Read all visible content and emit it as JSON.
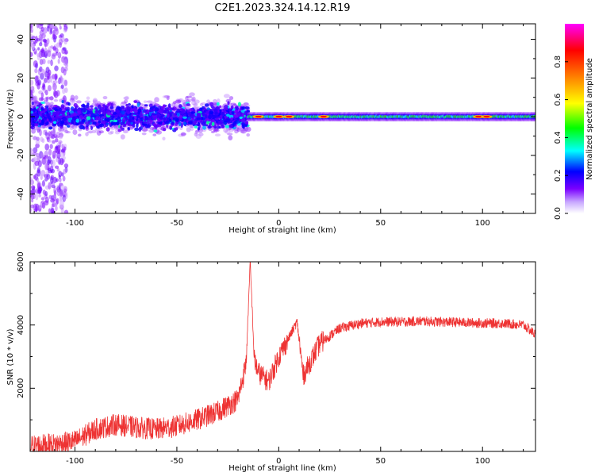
{
  "figure_title": "C2E1.2023.324.14.12.R19",
  "chart_data": [
    {
      "type": "heatmap",
      "xlabel": "Height of straight line (km)",
      "ylabel": "Frequency (Hz)",
      "xlim": [
        -122,
        126
      ],
      "ylim": [
        -50,
        48
      ],
      "x_ticks": [
        -100,
        -50,
        0,
        50,
        100
      ],
      "y_ticks": [
        -40,
        -20,
        0,
        20,
        40
      ],
      "colorbar": {
        "label": "Normalized spectral amplitude",
        "range": [
          0,
          1
        ],
        "ticks": [
          0.0,
          0.2,
          0.4,
          0.6,
          0.8
        ],
        "tick_labels": [
          "0.0",
          "0.2",
          "0.4",
          "0.6",
          "0.8"
        ],
        "colors": [
          "#ffffff",
          "#7a00ff",
          "#0000ff",
          "#00ffff",
          "#00ff00",
          "#ffff00",
          "#ff8000",
          "#ff0000",
          "#ff00ff"
        ]
      },
      "regions": [
        {
          "x_range": [
            -122,
            -104
          ],
          "freq_spread_hz": 50,
          "amplitude": "low"
        },
        {
          "x_range": [
            -104,
            -15
          ],
          "freq_spread_hz": 10,
          "amplitude": "0.2-0.5"
        },
        {
          "x_range": [
            -15,
            126
          ],
          "freq_spread_hz": 2,
          "amplitude": "0.4-1.0",
          "peaks_at_km": [
            -10,
            0,
            5,
            22,
            98,
            102
          ]
        }
      ]
    },
    {
      "type": "line",
      "xlabel": "Height of straight line (km)",
      "ylabel": "SNR (10 * v/v)",
      "xlim": [
        -122,
        126
      ],
      "ylim": [
        0,
        6000
      ],
      "x_ticks": [
        -100,
        -50,
        0,
        50,
        100
      ],
      "y_ticks": [
        2000,
        4000,
        6000
      ],
      "color": "#ee3333",
      "x": [
        -122,
        -110,
        -100,
        -90,
        -80,
        -70,
        -60,
        -50,
        -40,
        -30,
        -20,
        -16,
        -14,
        -12,
        -10,
        -5,
        0,
        5,
        9,
        12,
        20,
        30,
        40,
        50,
        60,
        70,
        80,
        90,
        100,
        110,
        120,
        124,
        126
      ],
      "y": [
        180,
        230,
        320,
        700,
        850,
        760,
        700,
        800,
        1000,
        1250,
        1650,
        2800,
        6000,
        2900,
        2500,
        2200,
        3000,
        3600,
        4100,
        2400,
        3400,
        3900,
        4050,
        4100,
        4100,
        4120,
        4100,
        4080,
        4060,
        4050,
        4000,
        3800,
        3700
      ],
      "noise_amplitude": 350
    }
  ]
}
